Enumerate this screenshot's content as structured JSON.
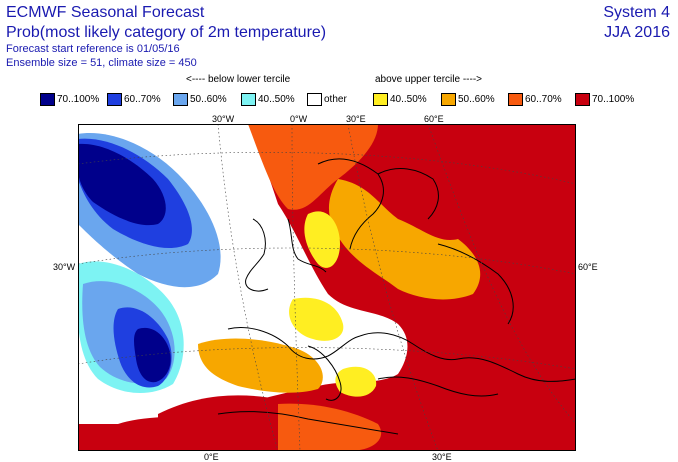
{
  "header": {
    "title": "ECMWF Seasonal Forecast",
    "subtitle": "Prob(most likely category of 2m temperature)",
    "forecast_ref": "Forecast start reference is 01/05/16",
    "ensemble": "Ensemble size = 51, climate size = 450",
    "system": "System 4",
    "season": "JJA 2016"
  },
  "tercile_labels": {
    "below": "<---- below lower tercile",
    "above": "above upper tercile ---->"
  },
  "legend": [
    {
      "label": "70..100%",
      "color": "#00008b"
    },
    {
      "label": "60..70%",
      "color": "#1f3fe0"
    },
    {
      "label": "50..60%",
      "color": "#6aa6ee"
    },
    {
      "label": "40..50%",
      "color": "#7df3f3"
    },
    {
      "label": "other",
      "color": "#ffffff"
    },
    {
      "label": "40..50%",
      "color": "#ffee22"
    },
    {
      "label": "50..60%",
      "color": "#f7a700"
    },
    {
      "label": "60..70%",
      "color": "#f75a0f"
    },
    {
      "label": "70..100%",
      "color": "#c8000f"
    }
  ],
  "map": {
    "labels": {
      "top_30w": "30°W",
      "top_0w": "0°W",
      "top_30e": "30°E",
      "top_60e": "60°E",
      "left_30w": "30°W",
      "right_60e": "60°E",
      "bottom_0e": "0°E",
      "bottom_30e": "30°E"
    }
  }
}
